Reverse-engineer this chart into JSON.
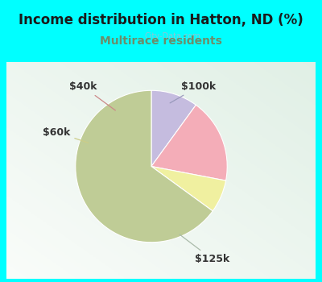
{
  "title": "Income distribution in Hatton, ND (%)",
  "subtitle": "Multirace residents",
  "title_color": "#1a1a1a",
  "subtitle_color": "#6b8e6b",
  "title_bg_color": "#00ffff",
  "chart_bg_top_left": "#d8f0e8",
  "chart_bg_bottom_right": "#e8f4f0",
  "slices": [
    {
      "label": "$100k",
      "value": 10,
      "color": "#c5bcdf"
    },
    {
      "label": "$40k",
      "value": 18,
      "color": "#f4adb8"
    },
    {
      "label": "$60k",
      "value": 7,
      "color": "#f0f0a0"
    },
    {
      "label": "$125k",
      "value": 65,
      "color": "#bfcc96"
    }
  ],
  "watermark": "City-Data.com",
  "watermark_color": "#aabbcc",
  "label_arrow_colors": {
    "$100k": "#9999bb",
    "$40k": "#cc8888",
    "$60k": "#cccc88",
    "$125k": "#aabbaa"
  },
  "label_text_color": "#333333",
  "label_fontsize": 9
}
